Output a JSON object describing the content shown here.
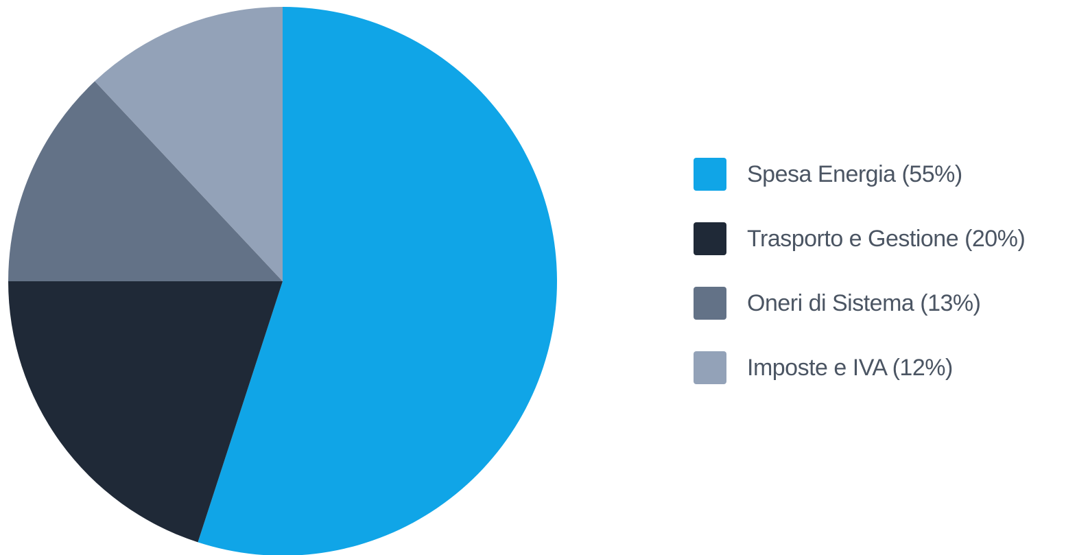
{
  "chart_data": {
    "type": "pie",
    "title": "",
    "legend_position": "right",
    "start_angle": "12 o'clock",
    "direction": "clockwise",
    "slices": [
      {
        "label": "Spesa Energia",
        "value": 55,
        "legend_text": "Spesa Energia (55%)",
        "color": "#10a5e7"
      },
      {
        "label": "Trasporto e Gestione",
        "value": 20,
        "legend_text": "Trasporto e Gestione (20%)",
        "color": "#1f2937"
      },
      {
        "label": "Oneri di Sistema",
        "value": 13,
        "legend_text": "Oneri di Sistema (13%)",
        "color": "#637287"
      },
      {
        "label": "Imposte e IVA",
        "value": 12,
        "legend_text": "Imposte e IVA (12%)",
        "color": "#93a2b8"
      }
    ]
  }
}
